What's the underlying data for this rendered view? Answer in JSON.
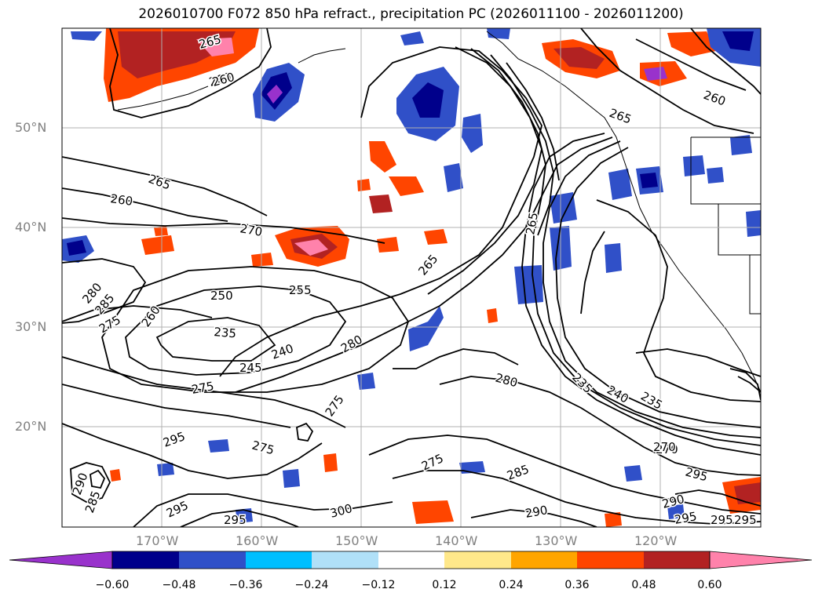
{
  "title": "2026010700 F072 850 hPa refract., precipitation PC (2026011100 - 2026011200)",
  "map": {
    "lat_labels": [
      "50°N",
      "40°N",
      "30°N",
      "20°N"
    ],
    "lon_labels": [
      "170°W",
      "160°W",
      "150°W",
      "140°W",
      "130°W",
      "120°W"
    ],
    "contour_labels": [
      "265",
      "260",
      "260",
      "265",
      "260",
      "265",
      "260",
      "270",
      "265",
      "265",
      "280",
      "285",
      "275",
      "250",
      "255",
      "260",
      "235",
      "240",
      "245",
      "275",
      "280",
      "275",
      "280",
      "275",
      "235",
      "240",
      "235",
      "270",
      "295",
      "295",
      "275",
      "285",
      "295",
      "290",
      "290",
      "285",
      "295",
      "295",
      "300",
      "290",
      "295",
      "295",
      "270"
    ]
  },
  "colorbar": {
    "tick_labels": [
      "−0.60",
      "−0.48",
      "−0.36",
      "−0.24",
      "−0.12",
      "0.12",
      "0.24",
      "0.36",
      "0.48",
      "0.60"
    ],
    "colors": [
      "#9932CC",
      "#00008B",
      "#3050C8",
      "#00BFFF",
      "#B0E0F8",
      "#FFFFFF",
      "#FFE88A",
      "#FFA500",
      "#FF4500",
      "#B22222",
      "#FF82AB"
    ]
  }
}
